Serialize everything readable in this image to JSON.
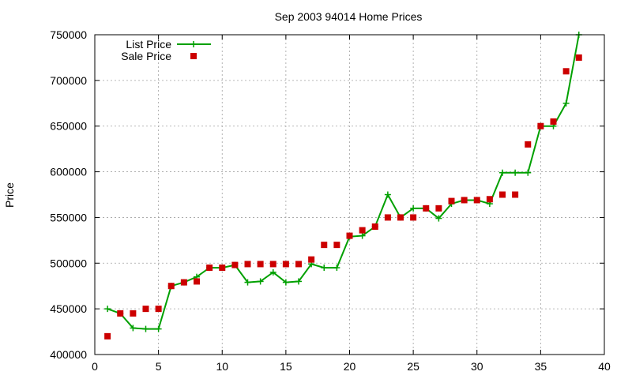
{
  "chart_data": {
    "type": "line",
    "title": "Sep 2003 94014 Home Prices",
    "xlabel": "",
    "ylabel": "Price",
    "xlim": [
      0,
      40
    ],
    "ylim": [
      400000,
      750000
    ],
    "xticks": [
      0,
      5,
      10,
      15,
      20,
      25,
      30,
      35,
      40
    ],
    "yticks": [
      400000,
      450000,
      500000,
      550000,
      600000,
      650000,
      700000,
      750000
    ],
    "grid": true,
    "legend_position": "top-left",
    "series": [
      {
        "name": "List Price",
        "style": "line+plus",
        "color": "#00a000",
        "x": [
          1,
          2,
          3,
          4,
          5,
          6,
          7,
          8,
          9,
          10,
          11,
          12,
          13,
          14,
          15,
          16,
          17,
          18,
          19,
          20,
          21,
          22,
          23,
          24,
          25,
          26,
          27,
          28,
          29,
          30,
          31,
          32,
          33,
          34,
          35,
          36,
          37,
          38
        ],
        "y": [
          450000,
          445000,
          429000,
          428000,
          428000,
          475000,
          479000,
          485000,
          495000,
          495000,
          498000,
          479000,
          480000,
          490000,
          479000,
          480000,
          499000,
          495000,
          495000,
          529000,
          530000,
          540000,
          575000,
          550000,
          560000,
          560000,
          549000,
          565000,
          569000,
          569000,
          565000,
          599000,
          599000,
          599000,
          650000,
          650000,
          675000,
          750000
        ]
      },
      {
        "name": "Sale Price",
        "style": "square-markers",
        "color": "#cc0000",
        "x": [
          1,
          2,
          3,
          4,
          5,
          6,
          7,
          8,
          9,
          10,
          11,
          12,
          13,
          14,
          15,
          16,
          17,
          18,
          19,
          20,
          21,
          22,
          23,
          24,
          25,
          26,
          27,
          28,
          29,
          30,
          31,
          32,
          33,
          34,
          35,
          36,
          37,
          38
        ],
        "y": [
          420000,
          445000,
          445000,
          450000,
          450000,
          475000,
          479000,
          480000,
          495000,
          495000,
          498000,
          499000,
          499000,
          499000,
          499000,
          499000,
          504000,
          520000,
          520000,
          530000,
          536000,
          540000,
          550000,
          550000,
          550000,
          560000,
          560000,
          568000,
          569000,
          569000,
          570000,
          575000,
          575000,
          630000,
          650000,
          655000,
          710000,
          725000
        ]
      }
    ]
  }
}
